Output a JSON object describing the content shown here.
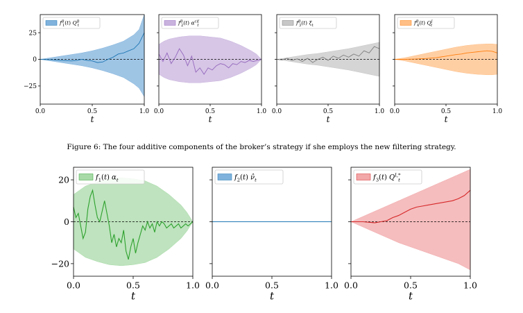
{
  "caption": "Figure 6: The four additive components of the broker’s strategy if she employs the new filtering strategy.",
  "chart_data": [
    {
      "type": "area",
      "legend": "f_1^B(t) Q_t^B",
      "color": "#1f77b4",
      "fill": "#7fb2dc",
      "xlabel": "t",
      "xlim": [
        0,
        1
      ],
      "ylim": [
        -42,
        42
      ],
      "x_ticks": [
        0.0,
        0.5,
        1.0
      ],
      "y_ticks": [
        25,
        0,
        -25
      ],
      "x_tick_labels": [
        "0.0",
        "0.5",
        "1.0"
      ],
      "y_tick_labels": [
        "25",
        "0",
        "−25"
      ],
      "band_x": [
        0,
        0.1,
        0.2,
        0.3,
        0.4,
        0.5,
        0.6,
        0.7,
        0.8,
        0.9,
        0.95,
        1.0
      ],
      "band_upper": [
        0,
        1.5,
        3,
        4.5,
        6,
        8,
        10.5,
        13.5,
        17,
        23,
        28,
        42
      ],
      "band_lower": [
        0,
        -1.5,
        -3,
        -4.5,
        -6,
        -8,
        -10.5,
        -13.5,
        -17,
        -23,
        -27,
        -35
      ],
      "line_x": [
        0,
        0.1,
        0.2,
        0.3,
        0.35,
        0.4,
        0.45,
        0.5,
        0.55,
        0.6,
        0.65,
        0.7,
        0.75,
        0.8,
        0.85,
        0.9,
        0.95,
        1.0
      ],
      "line_y": [
        0,
        -0.3,
        -1,
        -1.5,
        -1,
        0,
        -1,
        -1.5,
        -3,
        -2.5,
        0,
        2,
        5,
        6,
        8,
        10,
        15,
        25
      ]
    },
    {
      "type": "area",
      "legend": "f_2^B(t) α_t^{cif}",
      "color": "#9467bd",
      "fill": "#c9b3de",
      "xlabel": "t",
      "xlim": [
        0,
        1
      ],
      "ylim": [
        -42,
        42
      ],
      "x_ticks": [
        0.0,
        0.5,
        1.0
      ],
      "y_ticks": [
        25,
        0,
        -25
      ],
      "x_tick_labels": [
        "0.0",
        "0.5",
        "1.0"
      ],
      "y_tick_labels": [
        "25",
        "0",
        "−25"
      ],
      "band_x": [
        0,
        0.05,
        0.1,
        0.2,
        0.3,
        0.4,
        0.5,
        0.6,
        0.7,
        0.8,
        0.9,
        0.95,
        1.0
      ],
      "band_upper": [
        14,
        17,
        19,
        21,
        22,
        22,
        21,
        20,
        17,
        13,
        8,
        5,
        0
      ],
      "band_lower": [
        -14,
        -17,
        -19,
        -21,
        -22,
        -22,
        -21,
        -20,
        -17,
        -13,
        -8,
        -5,
        0
      ],
      "line_x": [
        0,
        0.04,
        0.08,
        0.12,
        0.16,
        0.2,
        0.24,
        0.28,
        0.32,
        0.36,
        0.4,
        0.44,
        0.48,
        0.52,
        0.56,
        0.6,
        0.64,
        0.68,
        0.72,
        0.76,
        0.8,
        0.84,
        0.88,
        0.92,
        0.96,
        1.0
      ],
      "line_y": [
        5,
        -2,
        6,
        -4,
        2,
        10,
        4,
        -6,
        3,
        -12,
        -8,
        -14,
        -8,
        -10,
        -6,
        -4,
        -5,
        -8,
        -4,
        -5,
        -2,
        -3,
        -1,
        -2,
        -1,
        0
      ]
    },
    {
      "type": "area",
      "legend": "f_3^B(t) ξ_t",
      "color": "#7f7f7f",
      "fill": "#c7c7c7",
      "xlabel": "t",
      "xlim": [
        0,
        1
      ],
      "ylim": [
        -42,
        42
      ],
      "x_ticks": [
        0.0,
        0.5,
        1.0
      ],
      "y_ticks": [
        25,
        0,
        -25
      ],
      "x_tick_labels": [
        "0.0",
        "0.5",
        "1.0"
      ],
      "y_tick_labels": [
        "25",
        "0",
        "−25"
      ],
      "band_x": [
        0,
        0.1,
        0.2,
        0.3,
        0.4,
        0.5,
        0.6,
        0.7,
        0.8,
        0.9,
        1.0
      ],
      "band_upper": [
        0,
        1.5,
        3,
        4.5,
        5.5,
        7,
        8.5,
        10,
        12,
        14,
        16
      ],
      "band_lower": [
        0,
        -1.5,
        -3,
        -4.5,
        -5.5,
        -7,
        -8.5,
        -10,
        -12,
        -14,
        -16
      ],
      "line_x": [
        0,
        0.05,
        0.1,
        0.15,
        0.2,
        0.25,
        0.3,
        0.35,
        0.4,
        0.45,
        0.5,
        0.55,
        0.6,
        0.65,
        0.7,
        0.75,
        0.8,
        0.85,
        0.9,
        0.95,
        1.0
      ],
      "line_y": [
        0,
        -0.5,
        1,
        -1,
        0.5,
        -2,
        1,
        -3,
        0,
        2,
        -1,
        3,
        1,
        4,
        2,
        5,
        3,
        8,
        6,
        12,
        10
      ]
    },
    {
      "type": "area",
      "legend": "f_4^B(t) Q_t^I",
      "color": "#ff7f0e",
      "fill": "#ffbf86",
      "xlabel": "t",
      "xlim": [
        0,
        1
      ],
      "ylim": [
        -42,
        42
      ],
      "x_ticks": [
        0.0,
        0.5,
        1.0
      ],
      "y_ticks": [
        25,
        0,
        -25
      ],
      "x_tick_labels": [
        "0.0",
        "0.5",
        "1.0"
      ],
      "y_tick_labels": [
        "25",
        "0",
        "−25"
      ],
      "band_x": [
        0,
        0.1,
        0.2,
        0.3,
        0.4,
        0.5,
        0.6,
        0.7,
        0.8,
        0.9,
        0.95,
        1.0
      ],
      "band_upper": [
        0,
        1.5,
        3.5,
        5.5,
        7.5,
        9.5,
        11.5,
        13,
        14,
        14.5,
        14.5,
        14
      ],
      "band_lower": [
        0,
        -1.5,
        -3.5,
        -5.5,
        -7.5,
        -9.5,
        -11.5,
        -13,
        -14,
        -14.5,
        -14.5,
        -14
      ],
      "line_x": [
        0,
        0.1,
        0.2,
        0.3,
        0.4,
        0.5,
        0.6,
        0.65,
        0.7,
        0.75,
        0.8,
        0.85,
        0.9,
        0.95,
        1.0
      ],
      "line_y": [
        0,
        0,
        0.3,
        0.8,
        1.5,
        3,
        4.5,
        5,
        6,
        6.5,
        7,
        7.5,
        8,
        7.5,
        6
      ]
    },
    {
      "type": "area",
      "legend": "f_1(t) α_t",
      "color": "#2ca02c",
      "fill": "#a8daa8",
      "xlabel": "t",
      "xlim": [
        0,
        1
      ],
      "ylim": [
        -26,
        26
      ],
      "x_ticks": [
        0.0,
        0.5,
        1.0
      ],
      "y_ticks": [
        20,
        0,
        -20
      ],
      "x_tick_labels": [
        "0.0",
        "0.5",
        "1.0"
      ],
      "y_tick_labels": [
        "20",
        "0",
        "−20"
      ],
      "band_x": [
        0,
        0.05,
        0.1,
        0.2,
        0.3,
        0.4,
        0.5,
        0.6,
        0.7,
        0.8,
        0.9,
        0.95,
        1.0
      ],
      "band_upper": [
        13,
        15,
        17,
        19,
        20.5,
        21,
        20.5,
        19.5,
        17,
        13,
        8,
        4.5,
        0
      ],
      "band_lower": [
        -13,
        -15,
        -17,
        -19,
        -20.5,
        -21,
        -20.5,
        -19.5,
        -17,
        -13,
        -8,
        -4.5,
        0
      ],
      "line_x": [
        0,
        0.02,
        0.04,
        0.06,
        0.08,
        0.1,
        0.12,
        0.14,
        0.16,
        0.18,
        0.2,
        0.22,
        0.24,
        0.26,
        0.28,
        0.3,
        0.32,
        0.34,
        0.36,
        0.38,
        0.4,
        0.42,
        0.44,
        0.46,
        0.48,
        0.5,
        0.52,
        0.54,
        0.56,
        0.58,
        0.6,
        0.62,
        0.64,
        0.66,
        0.68,
        0.7,
        0.72,
        0.74,
        0.76,
        0.78,
        0.8,
        0.82,
        0.84,
        0.86,
        0.88,
        0.9,
        0.92,
        0.94,
        0.96,
        0.98,
        1.0
      ],
      "line_y": [
        7,
        2,
        4,
        -2,
        -8,
        -5,
        6,
        12,
        15,
        8,
        2,
        0,
        5,
        10,
        4,
        -2,
        -10,
        -6,
        -12,
        -8,
        -10,
        -4,
        -14,
        -18,
        -12,
        -8,
        -15,
        -10,
        -6,
        -2,
        -4,
        0,
        -3,
        -1,
        -5,
        0,
        -2,
        0,
        -1,
        -3,
        -2,
        -1,
        -3,
        -2,
        -1,
        -3,
        -2,
        -1,
        -2,
        -1,
        0
      ]
    },
    {
      "type": "area",
      "legend": "f_2(t) ν̂_t",
      "color": "#1f77b4",
      "fill": "#7fb2dc",
      "xlabel": "t",
      "xlim": [
        0,
        1
      ],
      "ylim": [
        -26,
        26
      ],
      "x_ticks": [
        0.0,
        0.5,
        1.0
      ],
      "y_ticks": [
        20,
        0,
        -20
      ],
      "x_tick_labels": [
        "0.0",
        "0.5",
        "1.0"
      ],
      "y_tick_labels": [
        "20",
        "0",
        "−20"
      ],
      "band_x": [
        0,
        1.0
      ],
      "band_upper": [
        0,
        0
      ],
      "band_lower": [
        0,
        0
      ],
      "line_x": [
        0,
        1.0
      ],
      "line_y": [
        0,
        0
      ]
    },
    {
      "type": "area",
      "legend": "f_3(t) Q_t^{I,*}",
      "color": "#d62728",
      "fill": "#f2a7a8",
      "xlabel": "t",
      "xlim": [
        0,
        1
      ],
      "ylim": [
        -26,
        26
      ],
      "x_ticks": [
        0.0,
        0.5,
        1.0
      ],
      "y_ticks": [
        20,
        0,
        -20
      ],
      "x_tick_labels": [
        "0.0",
        "0.5",
        "1.0"
      ],
      "y_tick_labels": [
        "20",
        "0",
        "−20"
      ],
      "band_x": [
        0,
        0.1,
        0.2,
        0.3,
        0.4,
        0.5,
        0.6,
        0.7,
        0.8,
        0.9,
        1.0
      ],
      "band_upper": [
        0,
        2.5,
        5,
        7.5,
        10,
        12.5,
        15,
        17.5,
        20,
        22.5,
        25
      ],
      "band_lower": [
        0,
        -2.5,
        -5,
        -7.5,
        -10,
        -12,
        -14,
        -16,
        -18,
        -20,
        -23
      ],
      "line_x": [
        0,
        0.1,
        0.2,
        0.25,
        0.3,
        0.35,
        0.4,
        0.45,
        0.5,
        0.55,
        0.6,
        0.65,
        0.7,
        0.75,
        0.8,
        0.85,
        0.9,
        0.95,
        1.0
      ],
      "line_y": [
        0,
        0,
        -0.5,
        0,
        0.5,
        2,
        3,
        4.5,
        6,
        7,
        7.5,
        8,
        8.5,
        9,
        9.5,
        10,
        11,
        12.5,
        15
      ]
    }
  ]
}
